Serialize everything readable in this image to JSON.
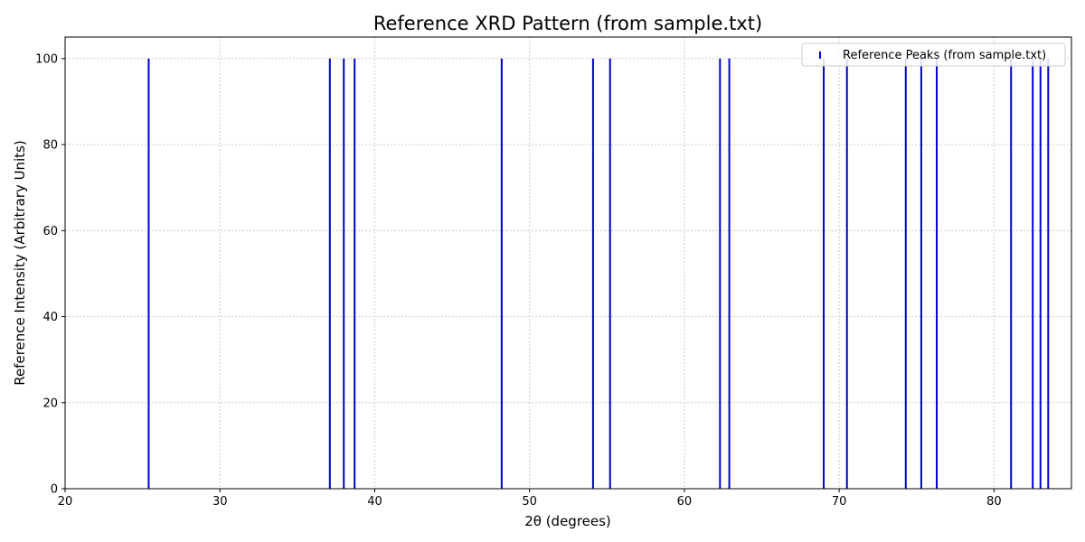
{
  "chart_data": {
    "type": "bar",
    "title": "Reference XRD Pattern (from sample.txt)",
    "xlabel": "2θ (degrees)",
    "ylabel": "Reference Intensity (Arbitrary Units)",
    "xlim": [
      20,
      85
    ],
    "ylim": [
      0,
      105
    ],
    "x_ticks": [
      20,
      30,
      40,
      50,
      60,
      70,
      80
    ],
    "y_ticks": [
      0,
      20,
      40,
      60,
      80,
      100
    ],
    "grid": true,
    "legend_position": "top-right",
    "series": [
      {
        "name": "Reference Peaks (from sample.txt)",
        "color": "#0000cc",
        "x": [
          25.4,
          37.1,
          38.0,
          38.7,
          48.2,
          54.1,
          55.2,
          62.3,
          62.9,
          69.0,
          70.5,
          74.3,
          75.3,
          76.3,
          81.1,
          82.5,
          83.0,
          83.5
        ],
        "y": [
          100,
          100,
          100,
          100,
          100,
          100,
          100,
          100,
          100,
          100,
          100,
          100,
          100,
          100,
          100,
          100,
          100,
          100
        ]
      }
    ]
  }
}
